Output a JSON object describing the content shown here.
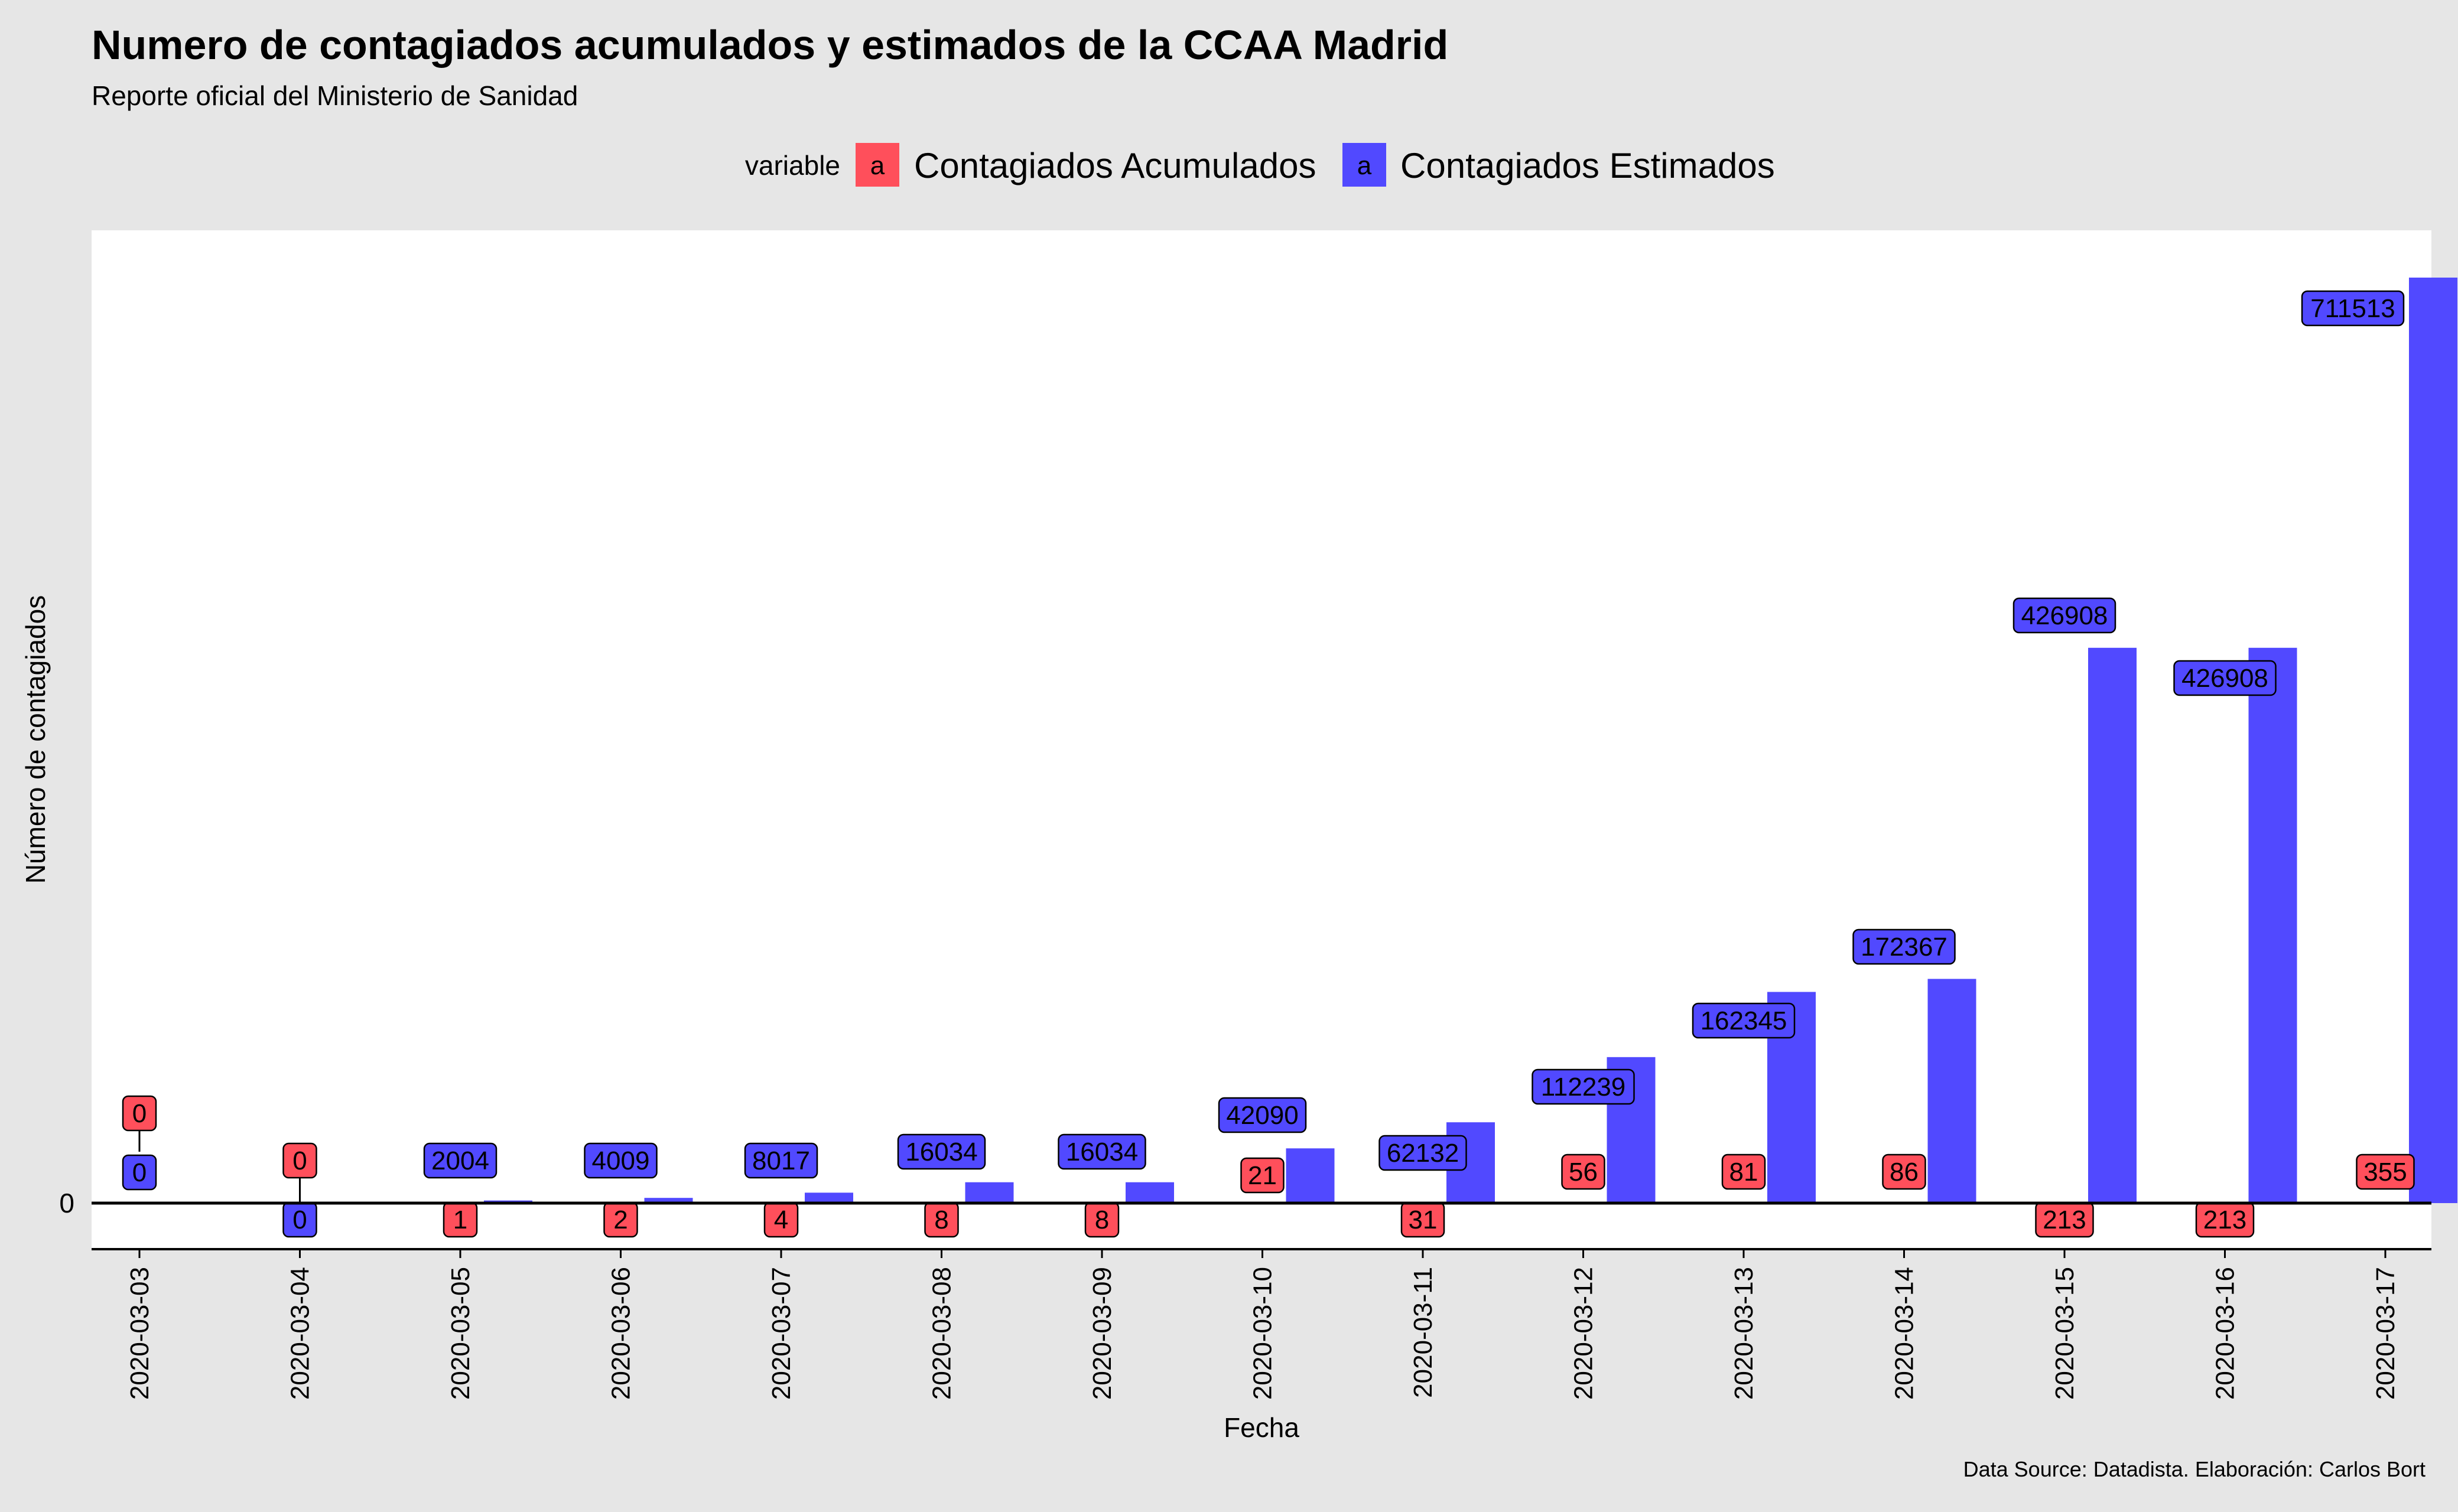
{
  "chart_data": {
    "type": "bar",
    "title": "Numero de contagiados acumulados y estimados de la CCAA Madrid",
    "subtitle": "Reporte oficial del Ministerio de Sanidad",
    "xlabel": "Fecha",
    "ylabel": "Número de contagiados",
    "caption": "Data Source: Datadista. Elaboración: Carlos Bort",
    "legend": {
      "title": "variable",
      "key_glyph": "a",
      "position": "top"
    },
    "y_tick_labels": [
      "0"
    ],
    "ylim": [
      -36000,
      750000
    ],
    "grid": false,
    "categories": [
      "2020-03-03",
      "2020-03-04",
      "2020-03-05",
      "2020-03-06",
      "2020-03-07",
      "2020-03-08",
      "2020-03-09",
      "2020-03-10",
      "2020-03-11",
      "2020-03-12",
      "2020-03-13",
      "2020-03-14",
      "2020-03-15",
      "2020-03-16",
      "2020-03-17"
    ],
    "series": [
      {
        "name": "Contagiados Acumulados",
        "color": "#ff4f5b",
        "values": [
          0,
          0,
          1,
          2,
          4,
          8,
          8,
          21,
          31,
          56,
          81,
          86,
          213,
          213,
          355
        ],
        "labels": [
          "0",
          "0",
          "1",
          "2",
          "4",
          "8",
          "8",
          "21",
          "31",
          "56",
          "81",
          "86",
          "213",
          "213",
          "355"
        ]
      },
      {
        "name": "Contagiados Estimados",
        "color": "#5149ff",
        "values": [
          0,
          0,
          2004,
          4009,
          8017,
          16034,
          16034,
          42090,
          62132,
          112239,
          162345,
          172367,
          426908,
          426908,
          711513
        ],
        "labels": [
          "0",
          "0",
          "2004",
          "4009",
          "8017",
          "16034",
          "16034",
          "42090",
          "62132",
          "112239",
          "162345",
          "172367",
          "426908",
          "426908",
          "711513"
        ]
      }
    ]
  }
}
